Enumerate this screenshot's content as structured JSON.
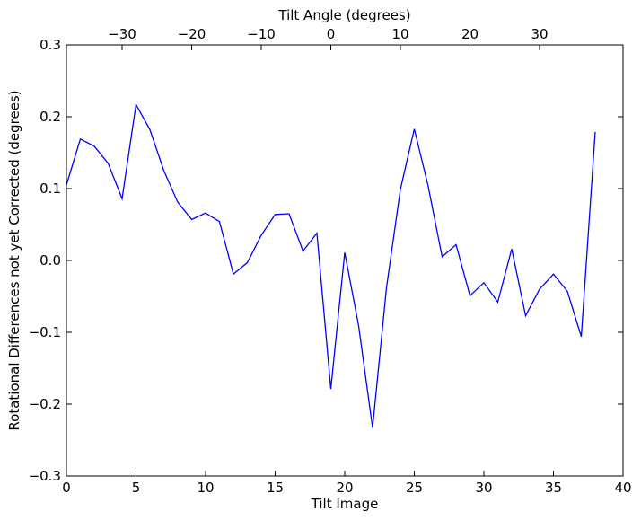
{
  "chart_data": {
    "type": "line",
    "title": "",
    "xlabel": "Tilt Image",
    "ylabel": "Rotational Differences not yet Corrected (degrees)",
    "x2label": "Tilt Angle (degrees)",
    "xlim": [
      0,
      40
    ],
    "ylim": [
      -0.3,
      0.3
    ],
    "x_ticks": [
      0,
      5,
      10,
      15,
      20,
      25,
      30,
      35,
      40
    ],
    "y_ticks": [
      -0.3,
      -0.2,
      -0.1,
      0.0,
      0.1,
      0.2,
      0.3
    ],
    "y_tick_labels": [
      "−0.3",
      "−0.2",
      "−0.1",
      "0.0",
      "0.1",
      "0.2",
      "0.3"
    ],
    "x2_ticks": [
      -30,
      -20,
      -10,
      0,
      10,
      20,
      30
    ],
    "x2_tick_labels": [
      "−30",
      "−20",
      "−10",
      "0",
      "10",
      "20",
      "30"
    ],
    "x2_angle_per_image": 2,
    "x2_angle_at_image_zero": -38,
    "grid": false,
    "legend": "none",
    "line_color": "#0000ff",
    "series": [
      {
        "x": [
          0,
          1,
          2,
          3,
          4,
          5,
          6,
          7,
          8,
          9,
          10,
          11,
          12,
          13,
          14,
          15,
          16,
          17,
          18,
          19,
          20,
          21,
          22,
          23,
          24,
          25,
          26,
          27,
          28,
          29,
          30,
          31,
          32,
          33,
          34,
          35,
          36,
          37,
          38
        ],
        "values": [
          0.105,
          0.169,
          0.159,
          0.135,
          0.086,
          0.217,
          0.182,
          0.125,
          0.081,
          0.057,
          0.066,
          0.054,
          -0.019,
          -0.003,
          0.035,
          0.064,
          0.065,
          0.013,
          0.038,
          -0.179,
          0.011,
          -0.091,
          -0.233,
          -0.038,
          0.099,
          0.183,
          0.103,
          0.005,
          0.022,
          -0.049,
          -0.031,
          -0.058,
          0.016,
          -0.077,
          -0.04,
          -0.019,
          -0.043,
          -0.106,
          0.179
        ]
      }
    ]
  }
}
